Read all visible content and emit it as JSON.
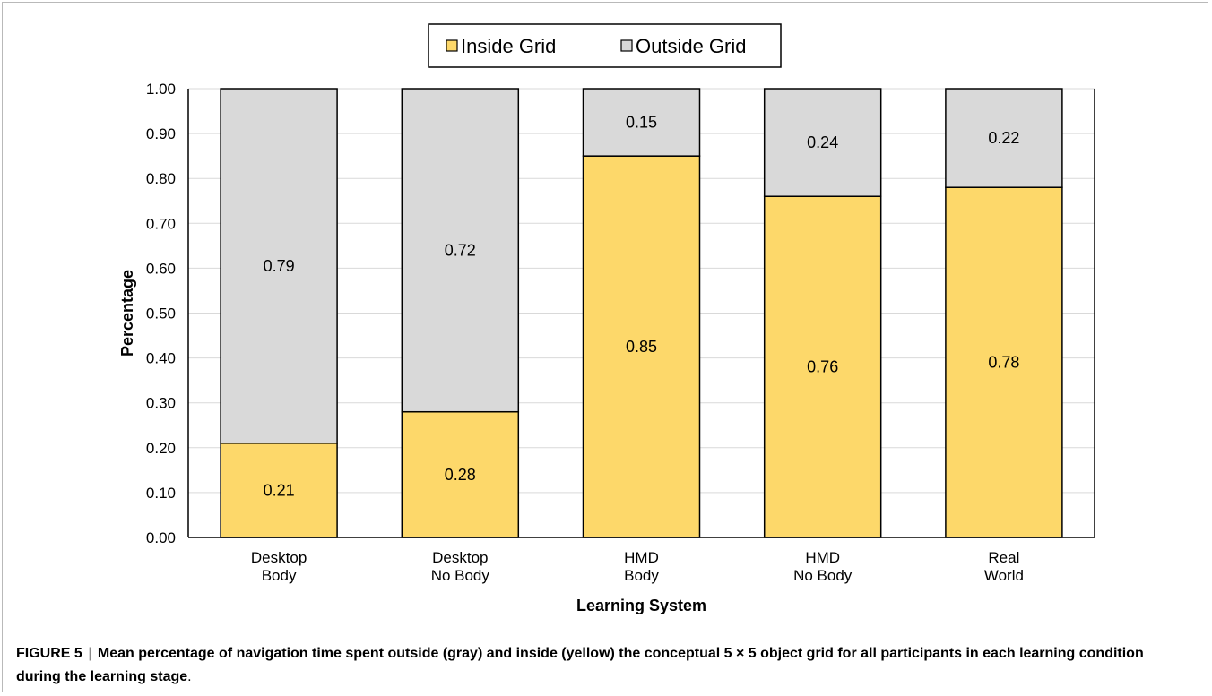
{
  "chart_data": {
    "type": "bar",
    "stacked": true,
    "categories": [
      [
        "Desktop",
        "Body"
      ],
      [
        "Desktop",
        "No Body"
      ],
      [
        "HMD",
        "Body"
      ],
      [
        "HMD",
        "No Body"
      ],
      [
        "Real",
        "World"
      ]
    ],
    "series": [
      {
        "name": "Inside Grid",
        "color": "#FDD86A",
        "values": [
          0.21,
          0.28,
          0.85,
          0.76,
          0.78
        ],
        "labels": [
          "0.21",
          "0.28",
          "0.85",
          "0.76",
          "0.78"
        ]
      },
      {
        "name": "Outside Grid",
        "color": "#D9D9D9",
        "values": [
          0.79,
          0.72,
          0.15,
          0.24,
          0.22
        ],
        "labels": [
          "0.79",
          "0.72",
          "0.15",
          "0.24",
          "0.22"
        ]
      }
    ],
    "xlabel": "Learning System",
    "ylabel": "Percentage",
    "ylim": [
      0,
      1
    ],
    "yticks": [
      "0.00",
      "0.10",
      "0.20",
      "0.30",
      "0.40",
      "0.50",
      "0.60",
      "0.70",
      "0.80",
      "0.90",
      "1.00"
    ],
    "grid": true,
    "legend": "top-center"
  },
  "caption": {
    "label": "FIGURE 5",
    "separator": "|",
    "text": "Mean percentage of navigation time spent outside (gray) and inside (yellow) the conceptual 5 × 5 object grid for all participants in each learning condition during the learning stage",
    "end": "."
  }
}
